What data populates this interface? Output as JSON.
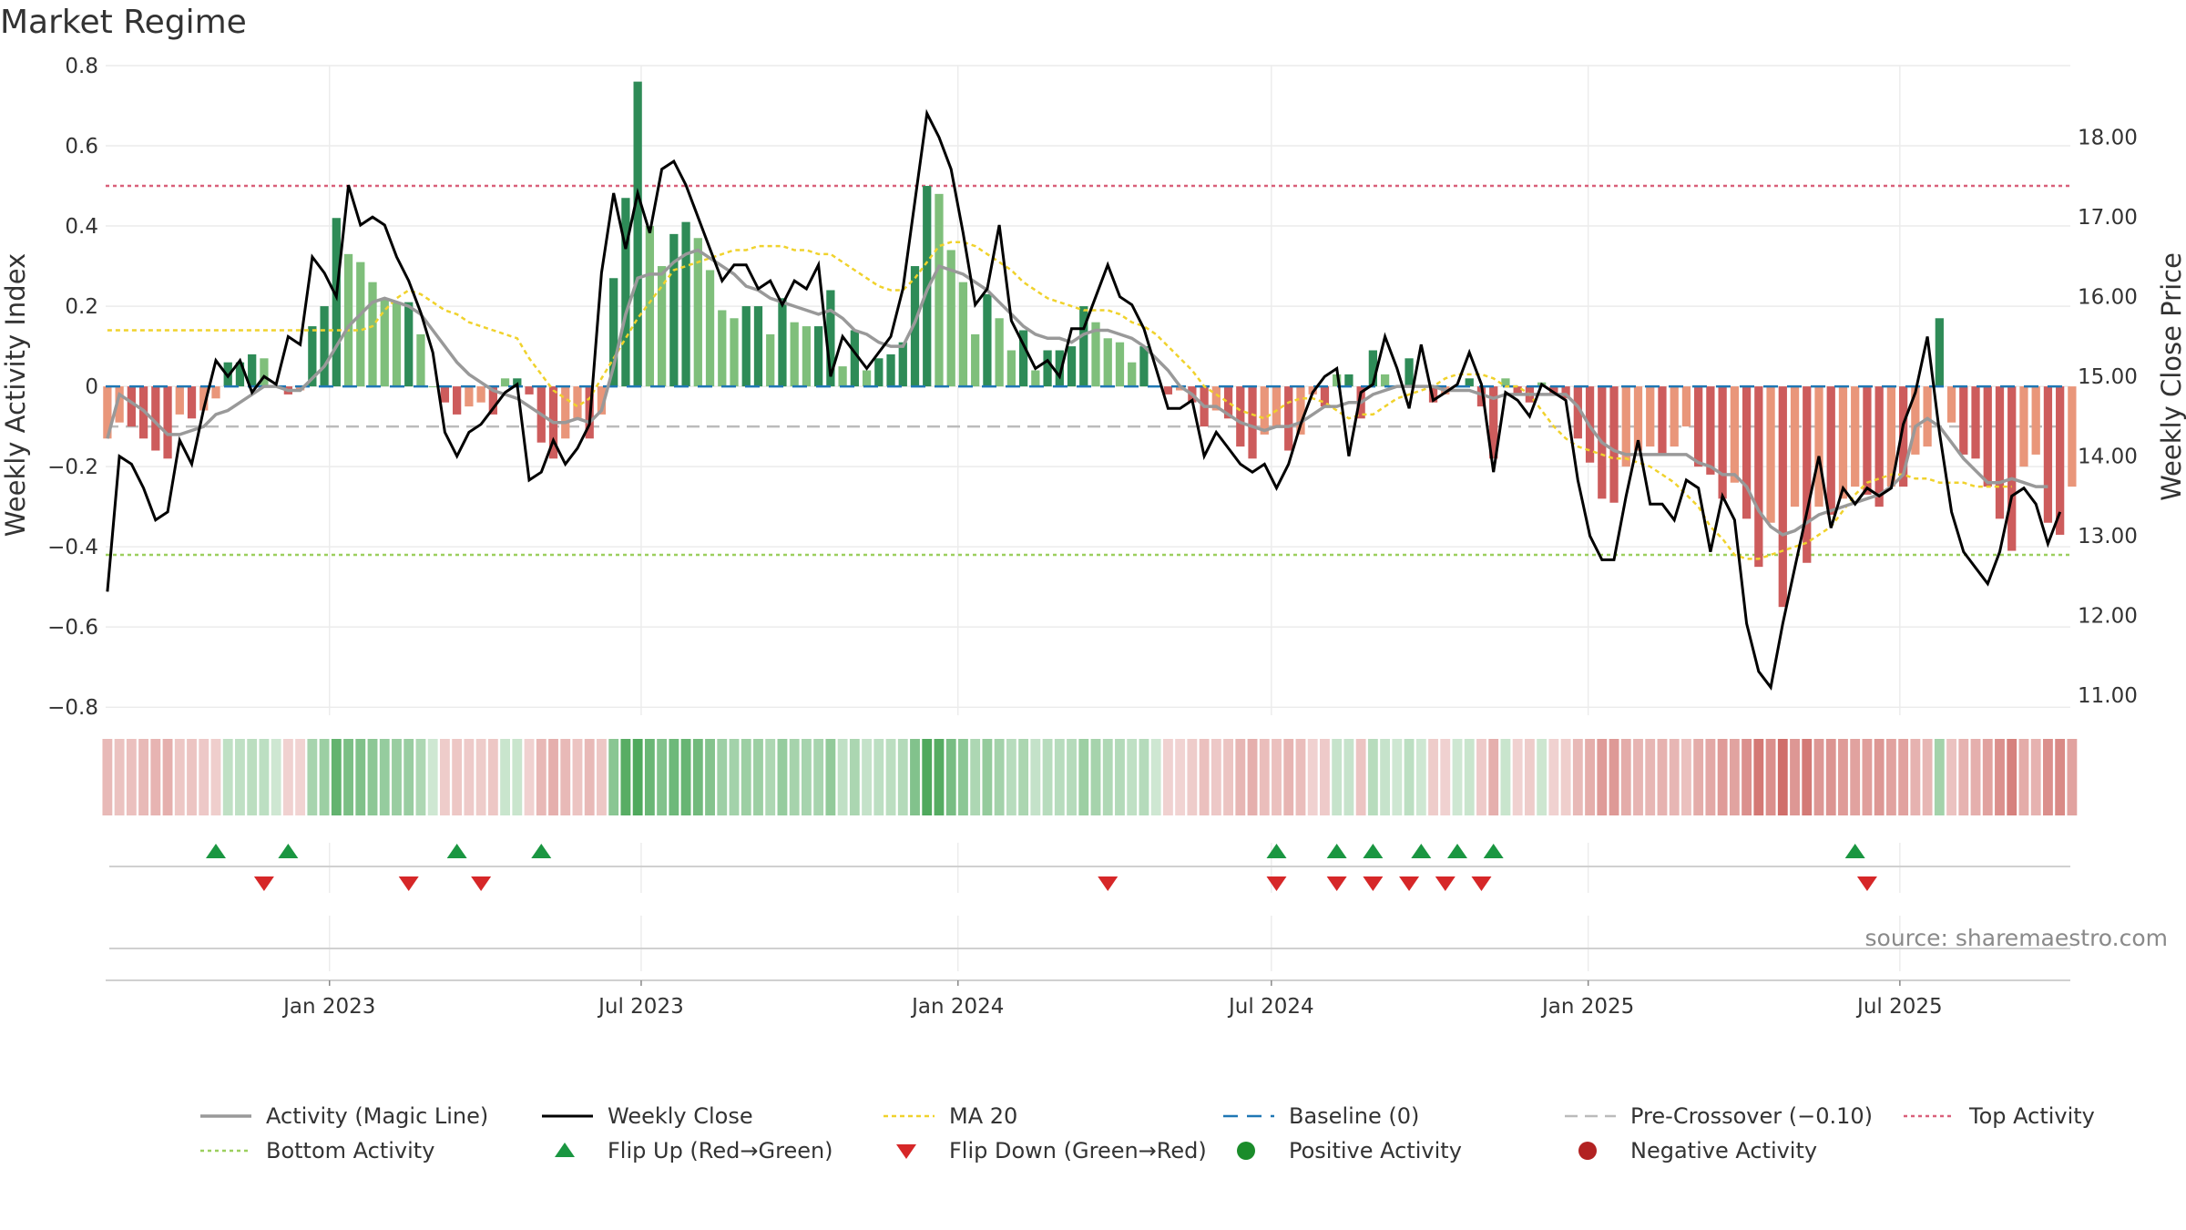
{
  "page": {
    "title": "Market Regime",
    "source": "source: sharemaestro.com"
  },
  "chart_data": {
    "type": "bar",
    "title": "Market Regime",
    "y_left": {
      "label": "Weekly Activity Index",
      "lim": [
        -0.82,
        0.8
      ],
      "ticks": [
        0.8,
        0.6,
        0.4,
        0.2,
        0,
        -0.2,
        -0.4,
        -0.6,
        -0.8
      ],
      "tick_labels": [
        "0.8",
        "0.6",
        "0.4",
        "0.2",
        "0",
        "−0.2",
        "−0.4",
        "−0.6",
        "−0.8"
      ]
    },
    "y_right": {
      "label": "Weekly Close Price",
      "lim": [
        10.75,
        18.9
      ],
      "ticks": [
        18,
        17,
        16,
        15,
        14,
        13,
        12,
        11
      ],
      "tick_labels": [
        "18.00",
        "17.00",
        "16.00",
        "15.00",
        "14.00",
        "13.00",
        "12.00",
        "11.00"
      ]
    },
    "x_axis": {
      "start": "2022-08-24",
      "end": "2025-10-08",
      "ticks": [
        "2023-01-01",
        "2023-07-01",
        "2024-01-01",
        "2024-07-01",
        "2025-01-01",
        "2025-07-01"
      ],
      "tick_labels": [
        "Jan 2023",
        "Jul 2023",
        "Jan 2024",
        "Jul 2024",
        "Jan 2025",
        "Jul 2025"
      ]
    },
    "reference_lines": {
      "top_activity": 0.5,
      "bottom_activity": -0.42,
      "baseline": 0,
      "pre_crossover": -0.1
    },
    "weeks": 160,
    "first_week": "2022-08-25",
    "activity": [
      -0.13,
      -0.09,
      -0.1,
      -0.13,
      -0.16,
      -0.18,
      -0.07,
      -0.08,
      -0.06,
      -0.03,
      0.06,
      0.06,
      0.08,
      0.07,
      0.0,
      -0.02,
      -0.01,
      0.15,
      0.2,
      0.42,
      0.33,
      0.31,
      0.26,
      0.22,
      0.21,
      0.21,
      0.13,
      0.0,
      -0.04,
      -0.07,
      -0.05,
      -0.04,
      -0.07,
      0.02,
      0.02,
      -0.02,
      -0.14,
      -0.18,
      -0.13,
      -0.08,
      -0.13,
      -0.07,
      0.27,
      0.47,
      0.76,
      0.4,
      0.3,
      0.38,
      0.41,
      0.37,
      0.29,
      0.19,
      0.17,
      0.2,
      0.2,
      0.13,
      0.22,
      0.16,
      0.15,
      0.15,
      0.24,
      0.05,
      0.14,
      0.04,
      0.07,
      0.08,
      0.11,
      0.3,
      0.5,
      0.48,
      0.34,
      0.26,
      0.13,
      0.23,
      0.17,
      0.09,
      0.14,
      0.04,
      0.09,
      0.09,
      0.1,
      0.2,
      0.16,
      0.12,
      0.11,
      0.06,
      0.1,
      0.0,
      -0.02,
      -0.01,
      -0.04,
      -0.1,
      -0.06,
      -0.08,
      -0.15,
      -0.18,
      -0.12,
      -0.1,
      -0.16,
      -0.12,
      -0.02,
      -0.05,
      0.03,
      0.03,
      -0.08,
      0.09,
      0.03,
      0.0,
      0.07,
      0.0,
      -0.04,
      -0.02,
      0.0,
      0.02,
      -0.05,
      -0.18,
      0.02,
      -0.02,
      -0.04,
      0.01,
      -0.02,
      -0.03,
      -0.13,
      -0.19,
      -0.28,
      -0.29,
      -0.2,
      -0.16,
      -0.15,
      -0.17,
      -0.15,
      -0.1,
      -0.2,
      -0.22,
      -0.28,
      -0.24,
      -0.33,
      -0.45,
      -0.34,
      -0.55,
      -0.3,
      -0.44,
      -0.3,
      -0.32,
      -0.28,
      -0.25,
      -0.27,
      -0.3,
      -0.25,
      -0.25,
      -0.17,
      -0.15,
      0.17,
      -0.09,
      -0.17,
      -0.18,
      -0.25,
      -0.33,
      -0.41,
      -0.2,
      -0.17,
      -0.34,
      -0.37,
      -0.25
    ],
    "magic_line": [
      -0.13,
      -0.02,
      -0.04,
      -0.06,
      -0.09,
      -0.12,
      -0.12,
      -0.11,
      -0.1,
      -0.07,
      -0.06,
      -0.04,
      -0.02,
      0.0,
      0.0,
      -0.01,
      -0.01,
      0.02,
      0.05,
      0.1,
      0.15,
      0.18,
      0.21,
      0.22,
      0.21,
      0.2,
      0.18,
      0.14,
      0.1,
      0.06,
      0.03,
      0.01,
      -0.01,
      -0.02,
      -0.03,
      -0.05,
      -0.07,
      -0.09,
      -0.09,
      -0.08,
      -0.09,
      -0.06,
      0.05,
      0.18,
      0.27,
      0.28,
      0.28,
      0.31,
      0.33,
      0.34,
      0.32,
      0.3,
      0.28,
      0.25,
      0.24,
      0.22,
      0.21,
      0.2,
      0.19,
      0.18,
      0.19,
      0.17,
      0.14,
      0.13,
      0.11,
      0.1,
      0.1,
      0.16,
      0.24,
      0.3,
      0.29,
      0.28,
      0.26,
      0.24,
      0.21,
      0.18,
      0.15,
      0.13,
      0.12,
      0.12,
      0.11,
      0.13,
      0.14,
      0.14,
      0.13,
      0.12,
      0.1,
      0.07,
      0.04,
      0.0,
      -0.02,
      -0.05,
      -0.05,
      -0.07,
      -0.09,
      -0.1,
      -0.11,
      -0.1,
      -0.1,
      -0.09,
      -0.07,
      -0.05,
      -0.05,
      -0.04,
      -0.04,
      -0.02,
      -0.01,
      0.0,
      0.0,
      0.0,
      0.0,
      -0.01,
      -0.01,
      -0.01,
      -0.02,
      -0.03,
      -0.02,
      -0.02,
      -0.02,
      -0.02,
      -0.02,
      -0.02,
      -0.05,
      -0.1,
      -0.14,
      -0.16,
      -0.17,
      -0.17,
      -0.17,
      -0.17,
      -0.17,
      -0.17,
      -0.19,
      -0.2,
      -0.22,
      -0.22,
      -0.25,
      -0.31,
      -0.35,
      -0.37,
      -0.36,
      -0.34,
      -0.32,
      -0.31,
      -0.3,
      -0.29,
      -0.28,
      -0.27,
      -0.25,
      -0.22,
      -0.1,
      -0.08,
      -0.1,
      -0.14,
      -0.18,
      -0.21,
      -0.24,
      -0.24,
      -0.23,
      -0.24,
      -0.25,
      -0.25
    ],
    "ma20": [
      0.14,
      0.14,
      0.14,
      0.14,
      0.14,
      0.14,
      0.14,
      0.14,
      0.14,
      0.14,
      0.14,
      0.14,
      0.14,
      0.14,
      0.14,
      0.14,
      0.14,
      0.14,
      0.14,
      0.14,
      0.14,
      0.14,
      0.15,
      0.19,
      0.22,
      0.24,
      0.23,
      0.21,
      0.19,
      0.18,
      0.16,
      0.15,
      0.14,
      0.13,
      0.12,
      0.07,
      0.03,
      -0.01,
      -0.03,
      -0.05,
      -0.03,
      0.02,
      0.07,
      0.12,
      0.17,
      0.21,
      0.25,
      0.29,
      0.3,
      0.31,
      0.32,
      0.33,
      0.34,
      0.34,
      0.35,
      0.35,
      0.35,
      0.34,
      0.34,
      0.33,
      0.33,
      0.31,
      0.29,
      0.27,
      0.25,
      0.24,
      0.24,
      0.27,
      0.31,
      0.35,
      0.36,
      0.36,
      0.35,
      0.33,
      0.31,
      0.29,
      0.26,
      0.24,
      0.22,
      0.21,
      0.2,
      0.19,
      0.19,
      0.19,
      0.18,
      0.16,
      0.15,
      0.13,
      0.1,
      0.07,
      0.04,
      0.0,
      -0.02,
      -0.04,
      -0.06,
      -0.07,
      -0.08,
      -0.06,
      -0.04,
      -0.03,
      -0.03,
      -0.04,
      -0.06,
      -0.08,
      -0.07,
      -0.07,
      -0.05,
      -0.03,
      -0.02,
      -0.01,
      0.0,
      0.02,
      0.03,
      0.03,
      0.03,
      0.02,
      0.0,
      0.0,
      -0.02,
      -0.06,
      -0.1,
      -0.13,
      -0.15,
      -0.16,
      -0.17,
      -0.18,
      -0.18,
      -0.19,
      -0.2,
      -0.22,
      -0.24,
      -0.27,
      -0.3,
      -0.35,
      -0.38,
      -0.42,
      -0.43,
      -0.43,
      -0.42,
      -0.41,
      -0.4,
      -0.39,
      -0.37,
      -0.35,
      -0.31,
      -0.27,
      -0.24,
      -0.23,
      -0.22,
      -0.22,
      -0.23,
      -0.23,
      -0.24,
      -0.24,
      -0.24,
      -0.25,
      -0.25,
      -0.25,
      -0.25
    ],
    "weekly_close": [
      12.3,
      14.0,
      13.9,
      13.6,
      13.2,
      13.3,
      14.2,
      13.9,
      14.6,
      15.2,
      15.0,
      15.2,
      14.8,
      15.0,
      14.9,
      15.5,
      15.4,
      16.5,
      16.3,
      16.0,
      17.4,
      16.9,
      17.0,
      16.9,
      16.5,
      16.2,
      15.8,
      15.3,
      14.3,
      14.0,
      14.3,
      14.4,
      14.6,
      14.8,
      14.9,
      13.7,
      13.8,
      14.2,
      13.9,
      14.1,
      14.4,
      16.3,
      17.3,
      16.6,
      17.3,
      16.8,
      17.6,
      17.7,
      17.4,
      17.0,
      16.6,
      16.2,
      16.4,
      16.4,
      16.1,
      16.2,
      15.9,
      16.2,
      16.1,
      16.4,
      15.0,
      15.5,
      15.3,
      15.1,
      15.3,
      15.5,
      16.1,
      17.2,
      18.3,
      18.0,
      17.6,
      16.8,
      15.9,
      16.1,
      16.9,
      15.7,
      15.4,
      15.1,
      15.2,
      15.0,
      15.6,
      15.6,
      16.0,
      16.4,
      16.0,
      15.9,
      15.6,
      15.1,
      14.6,
      14.6,
      14.7,
      14.0,
      14.3,
      14.1,
      13.9,
      13.8,
      13.9,
      13.6,
      13.9,
      14.4,
      14.8,
      15.0,
      15.1,
      14.0,
      14.8,
      14.9,
      15.5,
      15.1,
      14.6,
      15.4,
      14.7,
      14.8,
      14.9,
      15.3,
      14.9,
      13.8,
      14.8,
      14.7,
      14.5,
      14.9,
      14.8,
      14.7,
      13.7,
      13.0,
      12.7,
      12.7,
      13.5,
      14.2,
      13.4,
      13.4,
      13.2,
      13.7,
      13.6,
      12.8,
      13.5,
      13.2,
      11.9,
      11.3,
      11.1,
      11.9,
      12.6,
      13.3,
      14.0,
      13.1,
      13.6,
      13.4,
      13.6,
      13.5,
      13.6,
      14.4,
      14.8,
      15.5,
      14.3,
      13.3,
      12.8,
      12.6,
      12.4,
      12.8,
      13.5,
      13.6,
      13.4,
      12.9,
      13.3
    ],
    "flip_up_weeks": [
      9,
      15,
      29,
      36,
      97,
      102,
      105,
      109,
      112,
      115,
      145
    ],
    "flip_down_weeks": [
      13,
      25,
      31,
      83,
      97,
      102,
      105,
      108,
      111,
      114,
      146
    ],
    "legend": [
      {
        "label": "Activity (Magic Line)",
        "key": "magic"
      },
      {
        "label": "Weekly Close",
        "key": "close"
      },
      {
        "label": "MA 20",
        "key": "ma20"
      },
      {
        "label": "Baseline (0)",
        "key": "baseline"
      },
      {
        "label": "Pre-Crossover (−0.10)",
        "key": "precross"
      },
      {
        "label": "Top Activity",
        "key": "top"
      },
      {
        "label": "Bottom Activity",
        "key": "bottom"
      },
      {
        "label": "Flip Up (Red→Green)",
        "key": "flipup"
      },
      {
        "label": "Flip Down (Green→Red)",
        "key": "flipdown"
      },
      {
        "label": "Positive Activity",
        "key": "pos"
      },
      {
        "label": "Negative Activity",
        "key": "neg"
      }
    ],
    "colors": {
      "pos_strong": "#2e8b57",
      "pos_light": "#7fbf7b",
      "neg_strong": "#cd5c5c",
      "neg_light": "#e9967a",
      "close": "#000000",
      "magic": "#999999",
      "ma20": "#f0d22c",
      "baseline": "#1f77b4",
      "precross": "#bbbbbb",
      "top": "#d9607a",
      "bottom": "#9ccf5e",
      "flip_up": "#1a9641",
      "flip_down": "#d62728",
      "pos_dot": "#1a8c2a",
      "neg_dot": "#b22222"
    }
  }
}
